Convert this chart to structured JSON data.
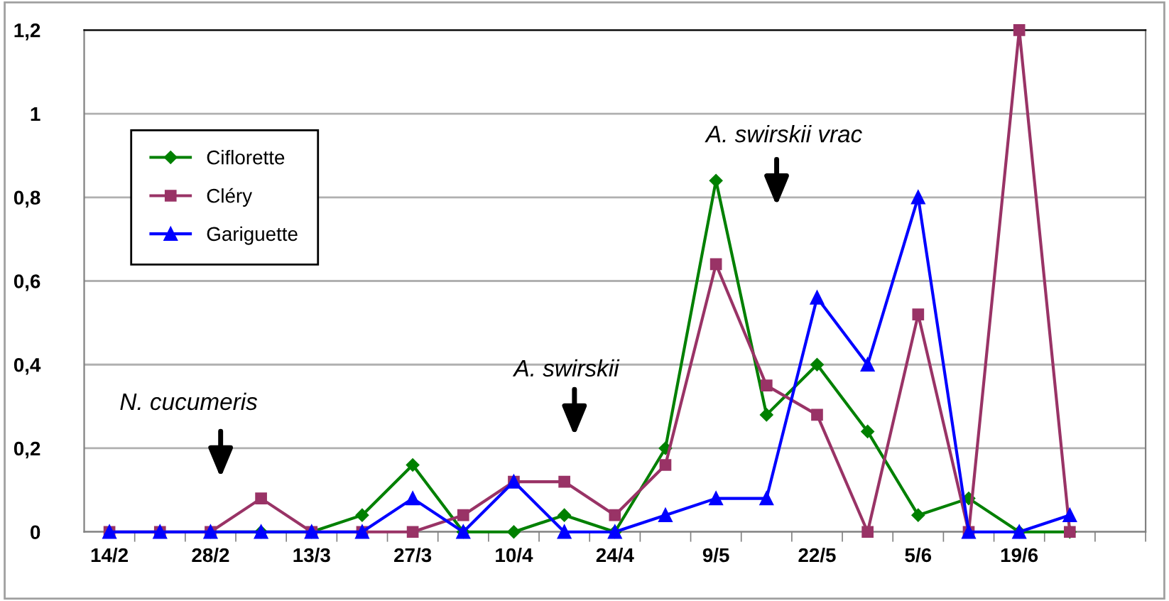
{
  "chart_data": {
    "type": "line",
    "categories": [
      "14/2",
      null,
      "28/2",
      null,
      "13/3",
      null,
      "27/3",
      null,
      "10/4",
      null,
      "24/4",
      null,
      "9/5",
      null,
      "22/5",
      null,
      "5/6",
      null,
      "19/6",
      null,
      null
    ],
    "series": [
      {
        "name": "Ciflorette",
        "color": "#008000",
        "marker": "diamond",
        "values": [
          null,
          null,
          0,
          0,
          0,
          0.04,
          0.16,
          0,
          0,
          0.04,
          0,
          0.2,
          0.84,
          0.28,
          0.4,
          0.24,
          0.04,
          0.08,
          0,
          0,
          null
        ]
      },
      {
        "name": "Cléry",
        "color": "#993366",
        "marker": "square",
        "values": [
          0,
          0,
          0,
          0.08,
          0,
          0,
          0,
          0.04,
          0.12,
          0.12,
          0.04,
          0.16,
          0.64,
          0.35,
          0.28,
          0,
          0.52,
          0,
          1.2,
          0,
          null
        ]
      },
      {
        "name": "Gariguette",
        "color": "#0000ff",
        "marker": "triangle",
        "values": [
          0,
          0,
          0,
          0,
          0,
          0,
          0.08,
          0,
          0.12,
          0,
          0,
          0.04,
          0.08,
          0.08,
          0.56,
          0.4,
          0.8,
          0,
          0,
          0.04,
          null
        ]
      }
    ],
    "ylim": [
      0,
      1.2
    ],
    "yticks": [
      0,
      {
        "value": 0.2,
        "label": "0,2"
      },
      {
        "value": 0.4,
        "label": "0,4"
      },
      {
        "value": 0.6,
        "label": "0,6"
      },
      {
        "value": 0.8,
        "label": "0,8"
      },
      1,
      {
        "value": 1.2,
        "label": "1,2"
      }
    ],
    "grid": "y",
    "legend": "top left",
    "line_style": "solid",
    "annotations": [
      "N. cucumeris",
      "A. swirskii",
      "A. swirskii vrac"
    ]
  }
}
